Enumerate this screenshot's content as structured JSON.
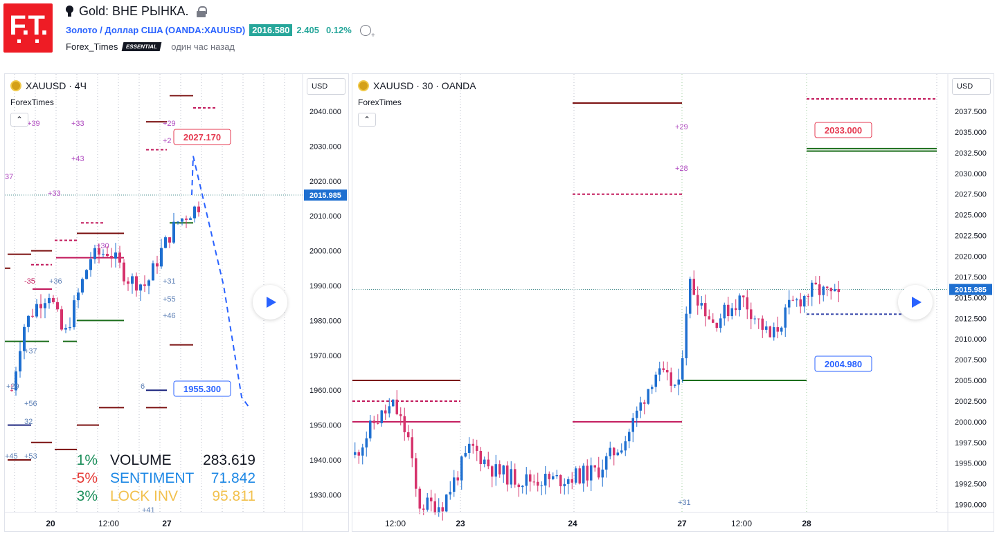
{
  "header": {
    "logo_text": "F.T.",
    "title": "Gold: ВНЕ РЫНКА.",
    "symbol_name": "Золото / Доллар США",
    "symbol_ticker": "(OANDA:XAUUSD)",
    "price": "2016.580",
    "change": "2.405",
    "change_pct": "0.12%",
    "author": "Forex_Times",
    "badge": "ESSENTIAL",
    "time_ago": "один час назад"
  },
  "colors": {
    "up": "#26a69a",
    "down": "#ef5350",
    "accent": "#2962ff",
    "magenta": "#c2185b",
    "darkred": "#7b1010",
    "green": "#1b6e1b"
  },
  "panel1": {
    "title": "XAUUSD · 4Ч",
    "author": "ForexTimes",
    "currency": "USD",
    "price_tag": "2015.985",
    "callout_top": "2027.170",
    "callout_bottom": "1955.300",
    "x_ticks": [
      "20",
      "12:00",
      "27"
    ],
    "y_ticks": [
      "2040.000",
      "2030.000",
      "2020.000",
      "2010.000",
      "2000.000",
      "1990.000",
      "1980.000",
      "1970.000",
      "1960.000",
      "1950.000",
      "1940.000",
      "1930.000"
    ],
    "annotations": [
      "+39",
      "+33",
      "+29",
      "+2",
      "+43",
      "37",
      "+33",
      "+30",
      "+31",
      "-35",
      "+36",
      "+55",
      "+46",
      "+37",
      "6",
      "+29",
      "+56",
      "32",
      "+45",
      "+53",
      "+41"
    ],
    "percent_left": [
      "1%",
      "-5%",
      "3%"
    ],
    "stats": [
      {
        "label": "VOLUME",
        "value": "283.619"
      },
      {
        "label": "SENTIMENT",
        "value": "71.842"
      },
      {
        "label": "LOCK INV",
        "value": "95.811"
      }
    ]
  },
  "panel2": {
    "title": "XAUUSD · 30 · OANDA",
    "author": "ForexTimes",
    "currency": "USD",
    "price_tag": "2015.985",
    "callout_top": "2033.000",
    "callout_bottom": "2004.980",
    "x_ticks": [
      "12:00",
      "23",
      "24",
      "27",
      "12:00",
      "28"
    ],
    "y_ticks": [
      "2037.500",
      "2035.000",
      "2032.500",
      "2030.000",
      "2027.500",
      "2025.000",
      "2022.500",
      "2020.000",
      "2017.500",
      "2015.000",
      "2012.500",
      "2010.000",
      "2007.500",
      "2005.000",
      "2002.500",
      "2000.000",
      "1997.500",
      "1995.000",
      "1992.500",
      "1990.000"
    ],
    "annotations": [
      "+29",
      "+28",
      "+31"
    ]
  },
  "chart_data": [
    {
      "type": "candlestick",
      "title": "XAUUSD · 4Ч",
      "ylim": [
        1925,
        2045
      ],
      "categories": [
        "20",
        "12:00",
        "27"
      ],
      "levels": [
        2027.17,
        1955.3,
        2015.985
      ],
      "projection": [
        2015.985,
        2027.17,
        2012,
        1990,
        1958,
        1955.3
      ]
    },
    {
      "type": "candlestick",
      "title": "XAUUSD · 30 · OANDA",
      "ylim": [
        1989,
        2039
      ],
      "categories": [
        "12:00",
        "23",
        "24",
        "27",
        "12:00",
        "28"
      ],
      "levels": [
        2033.0,
        2004.98,
        2015.985
      ]
    }
  ]
}
